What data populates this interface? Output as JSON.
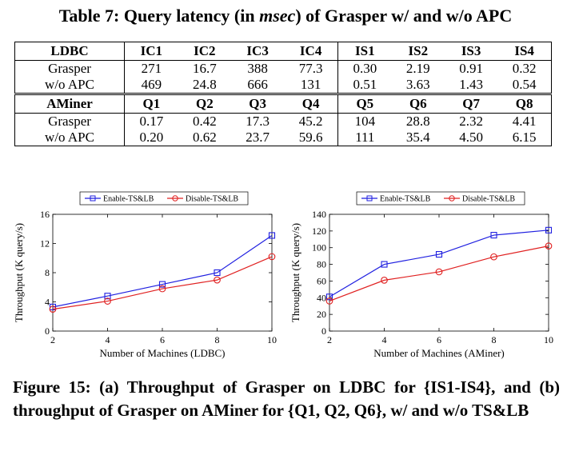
{
  "table": {
    "caption_prefix": "Table 7: Query latency (in ",
    "caption_unit": "msec",
    "caption_suffix": ") of Grasper w/ and w/o APC",
    "sections": [
      {
        "header": [
          "LDBC",
          "IC1",
          "IC2",
          "IC3",
          "IC4",
          "IS1",
          "IS2",
          "IS3",
          "IS4"
        ],
        "rows": [
          [
            "Grasper",
            "271",
            "16.7",
            "388",
            "77.3",
            "0.30",
            "2.19",
            "0.91",
            "0.32"
          ],
          [
            "w/o APC",
            "469",
            "24.8",
            "666",
            "131",
            "0.51",
            "3.63",
            "1.43",
            "0.54"
          ]
        ]
      },
      {
        "header": [
          "AMiner",
          "Q1",
          "Q2",
          "Q3",
          "Q4",
          "Q5",
          "Q6",
          "Q7",
          "Q8"
        ],
        "rows": [
          [
            "Grasper",
            "0.17",
            "0.42",
            "17.3",
            "45.2",
            "104",
            "28.8",
            "2.32",
            "4.41"
          ],
          [
            "w/o APC",
            "0.20",
            "0.62",
            "23.7",
            "59.6",
            "111",
            "35.4",
            "4.50",
            "6.15"
          ]
        ]
      }
    ]
  },
  "chart_data": [
    {
      "type": "line",
      "x": [
        2,
        4,
        6,
        8,
        10
      ],
      "xlabel": "Number of Machines (LDBC)",
      "ylabel": "Throughput (K query/s)",
      "xticks": [
        2,
        4,
        6,
        8,
        10
      ],
      "yticks": [
        0,
        4,
        8,
        12,
        16
      ],
      "xlim": [
        2,
        10
      ],
      "ylim": [
        0,
        16
      ],
      "legend_position": "top",
      "grid": false,
      "series": [
        {
          "name": "Enable-TS&LB",
          "values": [
            3.3,
            4.8,
            6.4,
            8.0,
            13.1
          ],
          "color": "#1f1fe0",
          "marker": "square"
        },
        {
          "name": "Disable-TS&LB",
          "values": [
            3.0,
            4.1,
            5.8,
            7.0,
            10.2
          ],
          "color": "#e02020",
          "marker": "circle"
        }
      ]
    },
    {
      "type": "line",
      "x": [
        2,
        4,
        6,
        8,
        10
      ],
      "xlabel": "Number of Machines (AMiner)",
      "ylabel": "Throughput (K query/s)",
      "xticks": [
        2,
        4,
        6,
        8,
        10
      ],
      "yticks": [
        0,
        20,
        40,
        60,
        80,
        100,
        120,
        140
      ],
      "xlim": [
        2,
        10
      ],
      "ylim": [
        0,
        140
      ],
      "legend_position": "top",
      "grid": false,
      "series": [
        {
          "name": "Enable-TS&LB",
          "values": [
            41,
            80,
            92,
            115,
            121
          ],
          "color": "#1f1fe0",
          "marker": "square"
        },
        {
          "name": "Disable-TS&LB",
          "values": [
            36,
            61,
            71,
            89,
            102
          ],
          "color": "#e02020",
          "marker": "circle"
        }
      ]
    }
  ],
  "figure": {
    "caption": "Figure 15: (a) Throughput of Grasper on LDBC for {IS1-IS4}, and (b) throughput of Grasper on AMiner for {Q1, Q2, Q6}, w/ and w/o TS&LB"
  }
}
